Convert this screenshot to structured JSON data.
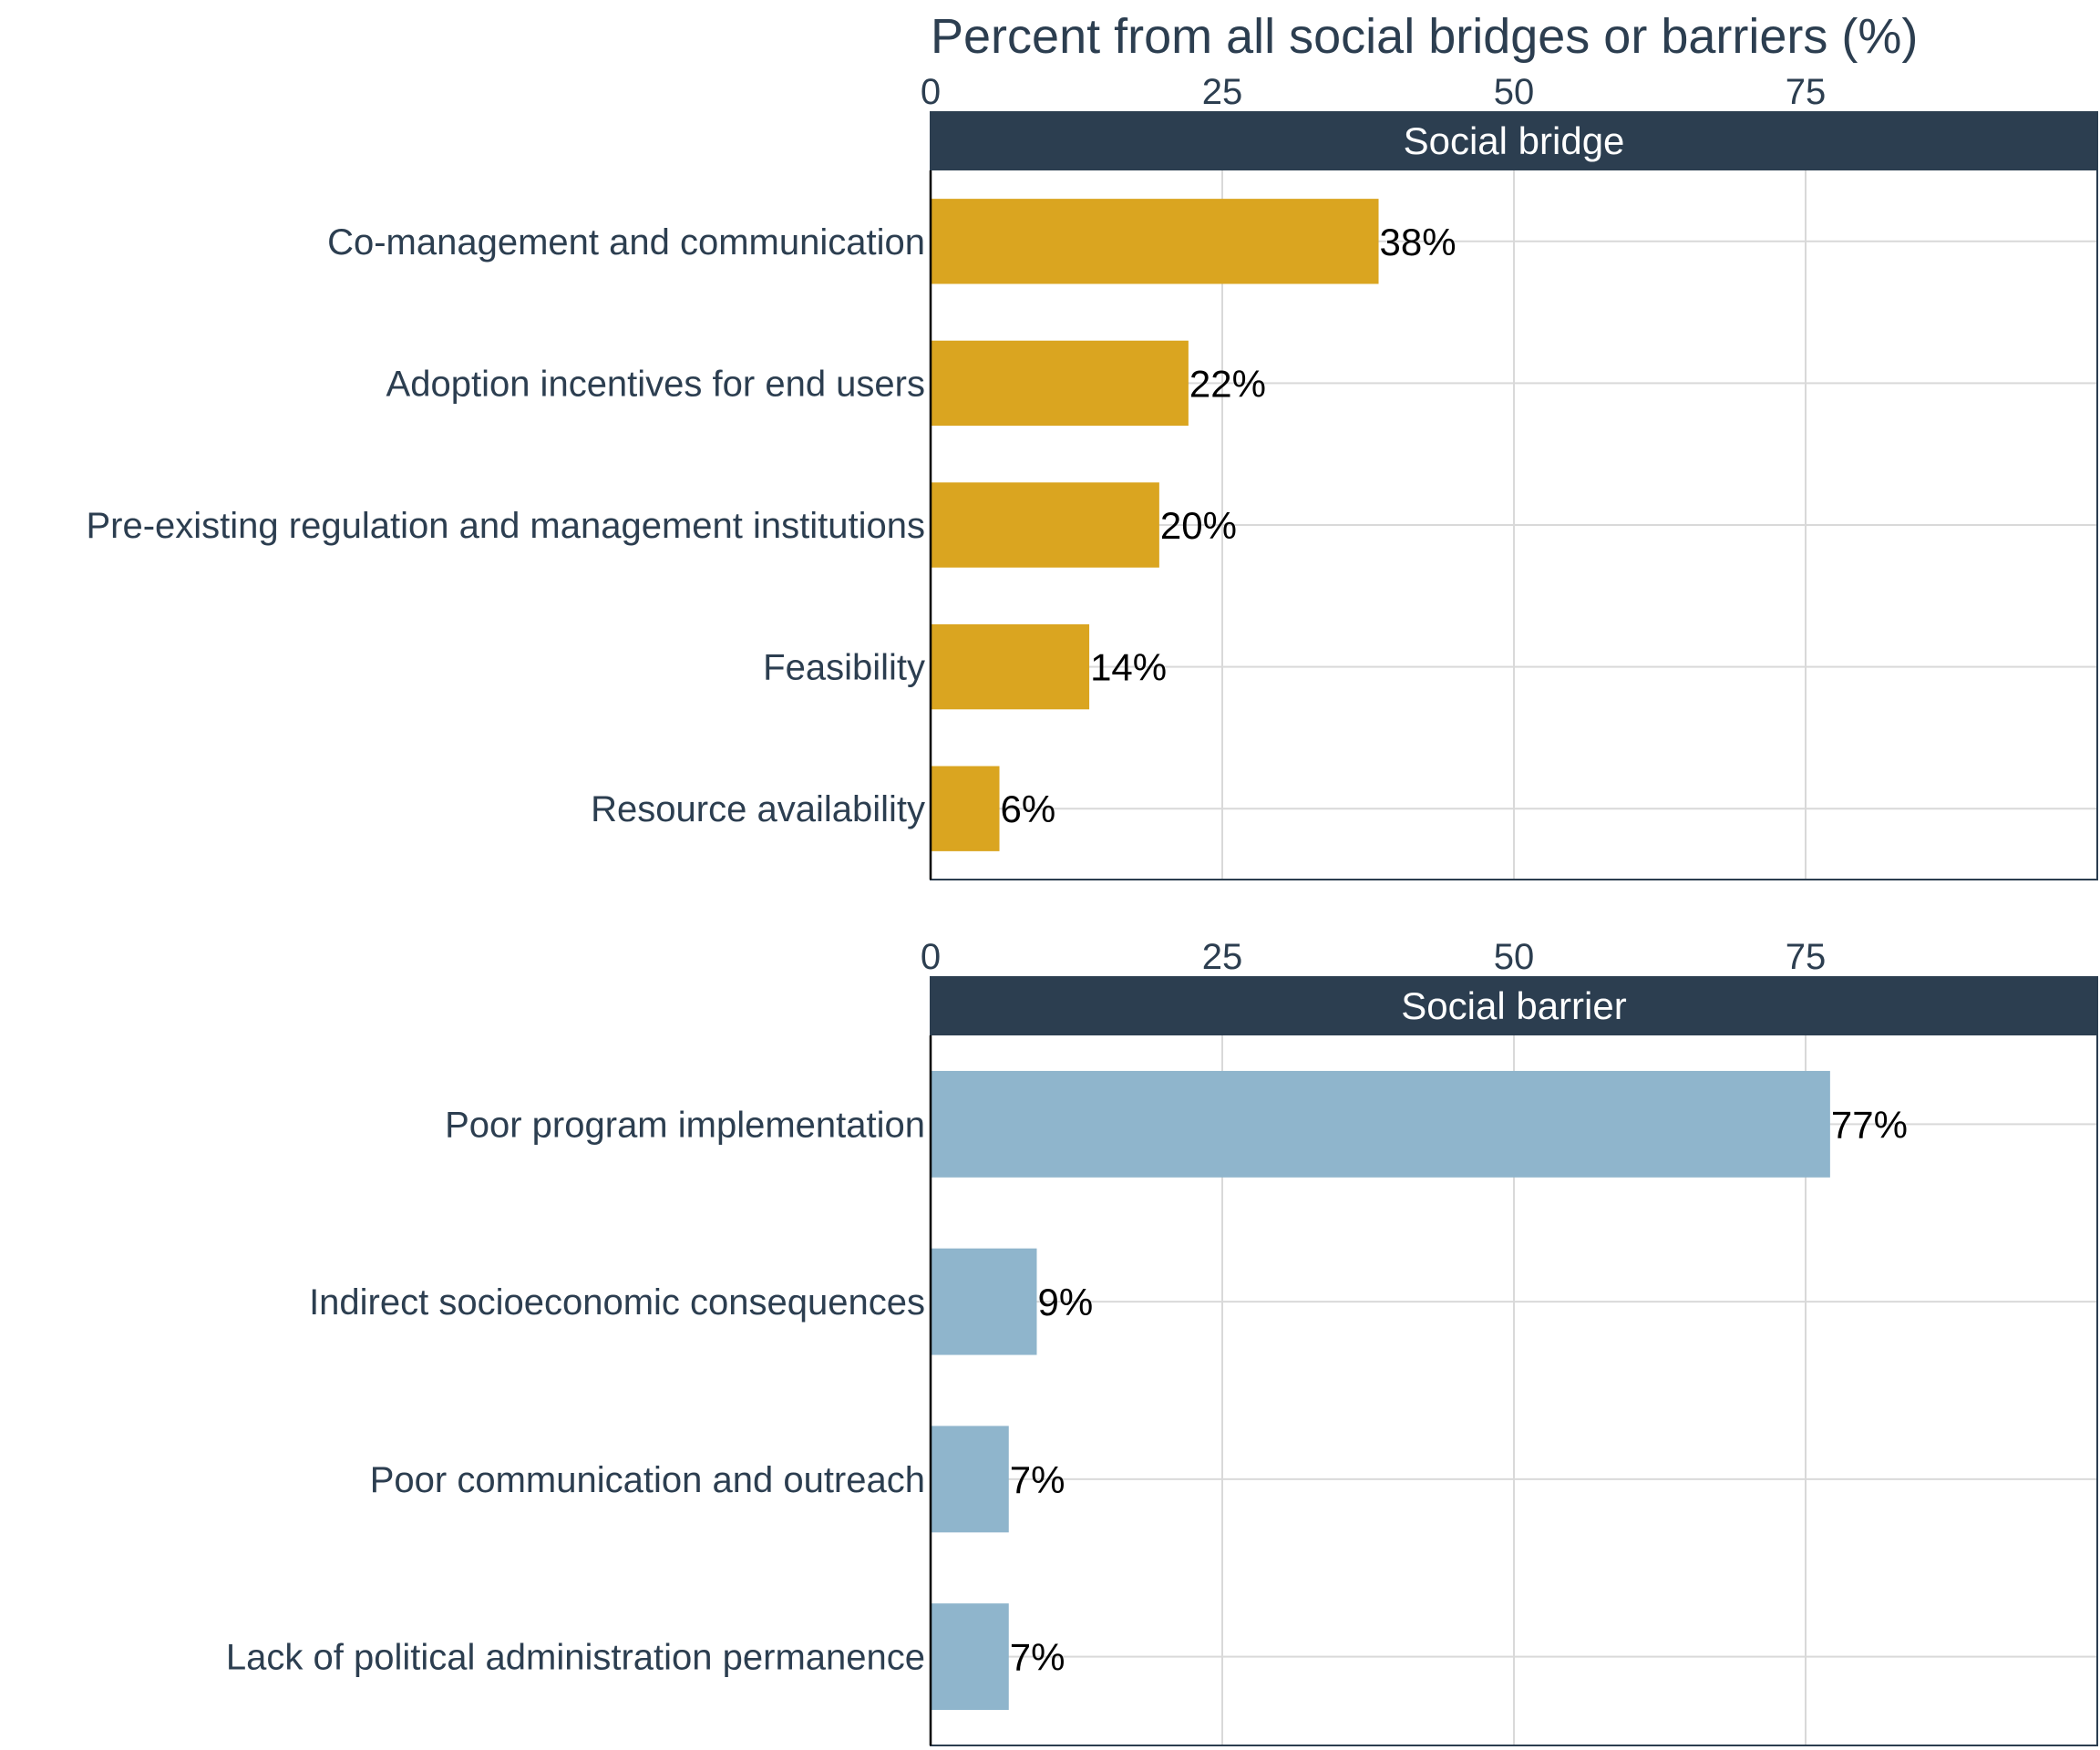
{
  "chart_data": {
    "type": "bar",
    "orientation": "horizontal",
    "title": "Percent from all social bridges or barriers (%)",
    "xlim": [
      0,
      100
    ],
    "xticks": [
      0,
      25,
      50,
      75
    ],
    "grid": true,
    "label_suffix": "%",
    "panels": [
      {
        "strip": "Social bridge",
        "color": "#DAA520",
        "categories": [
          "Co-management and communication",
          "Adoption incentives for end users",
          "Pre-existing regulation and management institutions",
          "Feasibility",
          "Resource availability"
        ],
        "values": [
          38.4,
          22.1,
          19.6,
          13.6,
          5.9
        ]
      },
      {
        "strip": "Social barrier",
        "color": "#8FB5CC",
        "categories": [
          "Poor program implementation",
          "Indirect socioeconomic consequences",
          "Poor communication and outreach",
          "Lack of political administration permanence"
        ],
        "values": [
          77.1,
          9.1,
          6.7,
          6.7
        ]
      }
    ]
  },
  "colors": {
    "strip_background": "#2C3E50",
    "text": "#2C3E50",
    "grid": "#D9D9D9"
  }
}
